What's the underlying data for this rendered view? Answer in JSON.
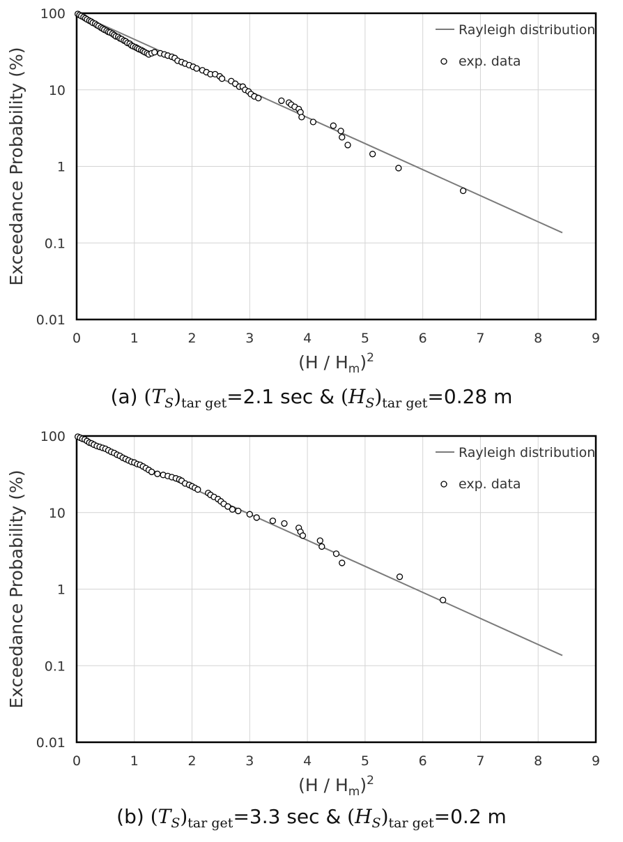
{
  "chart_data": [
    {
      "type": "scatter",
      "panel": "a",
      "xlabel_main": "(H / H",
      "xlabel_sub": "m",
      "xlabel_sup": "2",
      "ylabel": "Exceedance Probability (%)",
      "xlim": [
        0,
        9
      ],
      "ylim": [
        0.01,
        100
      ],
      "yscale": "log",
      "grid": true,
      "legend_position": "top-right",
      "x_ticks": [
        "0",
        "1",
        "2",
        "3",
        "4",
        "5",
        "6",
        "7",
        "8",
        "9"
      ],
      "y_ticks": [
        "0.01",
        "0.1",
        "1",
        "10",
        "100"
      ],
      "line_series": {
        "name": "Rayleigh distribution",
        "x": [
          0,
          8.42
        ],
        "y": [
          100,
          0.136
        ],
        "color": "#7a7a7a"
      },
      "point_series": {
        "name": "exp. data",
        "x": [
          0.02,
          0.05,
          0.08,
          0.12,
          0.15,
          0.18,
          0.22,
          0.25,
          0.28,
          0.32,
          0.35,
          0.38,
          0.42,
          0.45,
          0.48,
          0.52,
          0.55,
          0.58,
          0.62,
          0.65,
          0.68,
          0.72,
          0.75,
          0.78,
          0.82,
          0.85,
          0.88,
          0.92,
          0.95,
          0.98,
          1.02,
          1.05,
          1.08,
          1.12,
          1.15,
          1.18,
          1.22,
          1.25,
          1.3,
          1.35,
          1.45,
          1.52,
          1.58,
          1.65,
          1.7,
          1.75,
          1.82,
          1.88,
          1.95,
          2.02,
          2.08,
          2.18,
          2.25,
          2.32,
          2.4,
          2.48,
          2.52,
          2.68,
          2.75,
          2.82,
          2.88,
          2.92,
          2.98,
          3.02,
          3.08,
          3.15,
          3.55,
          3.68,
          3.72,
          3.78,
          3.85,
          3.88,
          3.9,
          4.1,
          4.45,
          4.58,
          4.6,
          4.7,
          5.13,
          5.58,
          6.7
        ],
        "y": [
          98,
          95,
          92,
          89,
          86,
          83,
          80,
          78,
          75,
          73,
          70,
          68,
          65,
          63,
          61,
          59,
          57,
          56,
          54,
          52,
          50,
          49,
          47,
          46,
          44,
          43,
          41,
          40,
          38,
          37,
          36,
          35,
          34,
          33,
          32,
          31,
          30,
          29,
          30,
          31,
          30,
          29,
          28,
          27,
          26,
          24,
          23,
          22,
          21,
          20,
          19,
          18,
          17,
          16,
          16,
          15,
          14,
          13,
          12,
          11,
          11,
          10,
          9.5,
          8.8,
          8.2,
          7.8,
          7.2,
          6.8,
          6.4,
          6,
          5.6,
          5.1,
          4.4,
          3.8,
          3.4,
          2.9,
          2.4,
          1.9,
          1.45,
          0.95,
          0.48
        ]
      }
    },
    {
      "type": "scatter",
      "panel": "b",
      "xlabel_main": "(H / H",
      "xlabel_sub": "m",
      "xlabel_sup": "2",
      "ylabel": "Exceedance Probability (%)",
      "xlim": [
        0,
        9
      ],
      "ylim": [
        0.01,
        100
      ],
      "yscale": "log",
      "grid": true,
      "legend_position": "top-right",
      "x_ticks": [
        "0",
        "1",
        "2",
        "3",
        "4",
        "5",
        "6",
        "7",
        "8",
        "9"
      ],
      "y_ticks": [
        "0.01",
        "0.1",
        "1",
        "10",
        "100"
      ],
      "line_series": {
        "name": "Rayleigh distribution",
        "x": [
          0,
          8.42
        ],
        "y": [
          100,
          0.136
        ],
        "color": "#7a7a7a"
      },
      "point_series": {
        "name": "exp. data",
        "x": [
          0.02,
          0.06,
          0.1,
          0.14,
          0.18,
          0.22,
          0.26,
          0.3,
          0.35,
          0.4,
          0.45,
          0.5,
          0.55,
          0.6,
          0.65,
          0.7,
          0.75,
          0.8,
          0.85,
          0.9,
          0.95,
          1.0,
          1.05,
          1.1,
          1.15,
          1.2,
          1.25,
          1.3,
          1.4,
          1.5,
          1.58,
          1.65,
          1.72,
          1.78,
          1.82,
          1.88,
          1.95,
          2.0,
          2.05,
          2.1,
          2.28,
          2.32,
          2.38,
          2.45,
          2.5,
          2.55,
          2.62,
          2.7,
          2.8,
          3.0,
          3.12,
          3.4,
          3.6,
          3.85,
          3.88,
          3.92,
          4.22,
          4.25,
          4.5,
          4.6,
          5.6,
          6.35
        ],
        "y": [
          98,
          95,
          92,
          90,
          86,
          82,
          80,
          77,
          74,
          72,
          70,
          68,
          65,
          62,
          60,
          57,
          55,
          52,
          50,
          48,
          46,
          45,
          43,
          42,
          40,
          38,
          36,
          34,
          32,
          31,
          30,
          29,
          28,
          27,
          26,
          24,
          23,
          22,
          21,
          20,
          18,
          17,
          16,
          15,
          14,
          13,
          12,
          11,
          10.5,
          9.5,
          8.6,
          7.8,
          7.2,
          6.3,
          5.6,
          5,
          4.3,
          3.6,
          2.9,
          2.2,
          1.45,
          0.72
        ]
      }
    }
  ],
  "captions": [
    {
      "prefix": "(a) ",
      "T": "T",
      "S": "S",
      "sub": "tar get",
      "mid": "=2.1 sec & ",
      "H": "H",
      "end": "=0.28 m"
    },
    {
      "prefix": "(b) ",
      "T": "T",
      "S": "S",
      "sub": "tar get",
      "mid": "=3.3 sec & ",
      "H": "H",
      "end": "=0.2 m"
    }
  ]
}
